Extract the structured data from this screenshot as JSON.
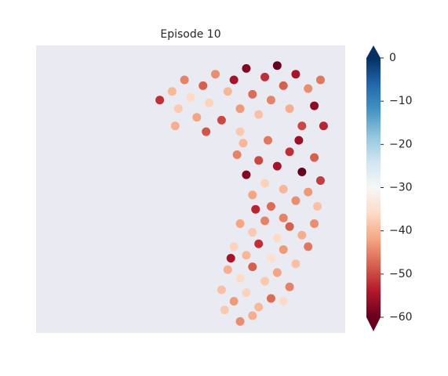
{
  "chart_data": {
    "type": "scatter",
    "title": "Episode 10",
    "x": [
      40,
      44,
      46,
      48,
      50,
      52,
      54,
      56,
      58,
      60,
      62,
      64,
      66,
      68,
      70,
      72,
      74,
      76,
      78,
      80,
      82,
      84,
      86,
      88,
      90,
      92,
      93,
      45,
      55,
      66,
      65,
      68,
      70,
      72,
      74,
      76,
      78,
      80,
      82,
      84,
      86,
      88,
      90,
      92,
      67,
      75,
      85,
      91,
      71,
      80,
      66,
      70,
      74,
      78,
      82,
      86,
      90,
      64,
      68,
      72,
      76,
      80,
      84,
      88,
      62,
      66,
      70,
      74,
      78,
      82,
      60,
      64,
      68,
      72,
      76,
      61,
      70,
      66,
      80,
      63
    ],
    "y": [
      81,
      84,
      78,
      88,
      82,
      75,
      86,
      80,
      90,
      74,
      84,
      88,
      78,
      92,
      83,
      76,
      89,
      81,
      93,
      86,
      78,
      90,
      72,
      85,
      79,
      88,
      72,
      72,
      70,
      70,
      62,
      55,
      48,
      60,
      52,
      44,
      58,
      50,
      63,
      46,
      56,
      49,
      61,
      53,
      66,
      67,
      67,
      44,
      43,
      40,
      38,
      35,
      39,
      33,
      37,
      34,
      38,
      30,
      27,
      31,
      26,
      29,
      24,
      30,
      22,
      19,
      23,
      18,
      21,
      16,
      15,
      11,
      14,
      9,
      12,
      8,
      6,
      4,
      11,
      26
    ],
    "values": [
      -52,
      -40,
      -38,
      -45,
      -36,
      -42,
      -48,
      -37,
      -44,
      -50,
      -40,
      -55,
      -43,
      -58,
      -47,
      -39,
      -52,
      -45,
      -60,
      -48,
      -41,
      -55,
      -50,
      -44,
      -57,
      -46,
      -53,
      -41,
      -49,
      -38,
      -45,
      -58,
      -42,
      -50,
      -37,
      -47,
      -55,
      -40,
      -52,
      -44,
      -60,
      -43,
      -48,
      -51,
      -40,
      -46,
      -56,
      -39,
      -53,
      -45,
      -42,
      -38,
      -45,
      -36,
      -48,
      -41,
      -44,
      -37,
      -40,
      -52,
      -35,
      -43,
      -39,
      -46,
      -41,
      -36,
      -48,
      -38,
      -42,
      -45,
      -39,
      -43,
      -37,
      -40,
      -47,
      -38,
      -41,
      -44,
      -36,
      -55
    ],
    "xlim": [
      0,
      100
    ],
    "ylim": [
      0,
      100
    ],
    "colormap": "RdBu",
    "clim": [
      -60,
      0
    ],
    "cticks": [
      0,
      {
        "value": -10,
        "label": "−10"
      },
      {
        "value": -20,
        "label": "−20"
      },
      {
        "value": -30,
        "label": "−30"
      },
      {
        "value": -40,
        "label": "−40"
      },
      {
        "value": -50,
        "label": "−50"
      },
      {
        "value": -60,
        "label": "−60"
      }
    ],
    "background": "#eaeaf2"
  }
}
